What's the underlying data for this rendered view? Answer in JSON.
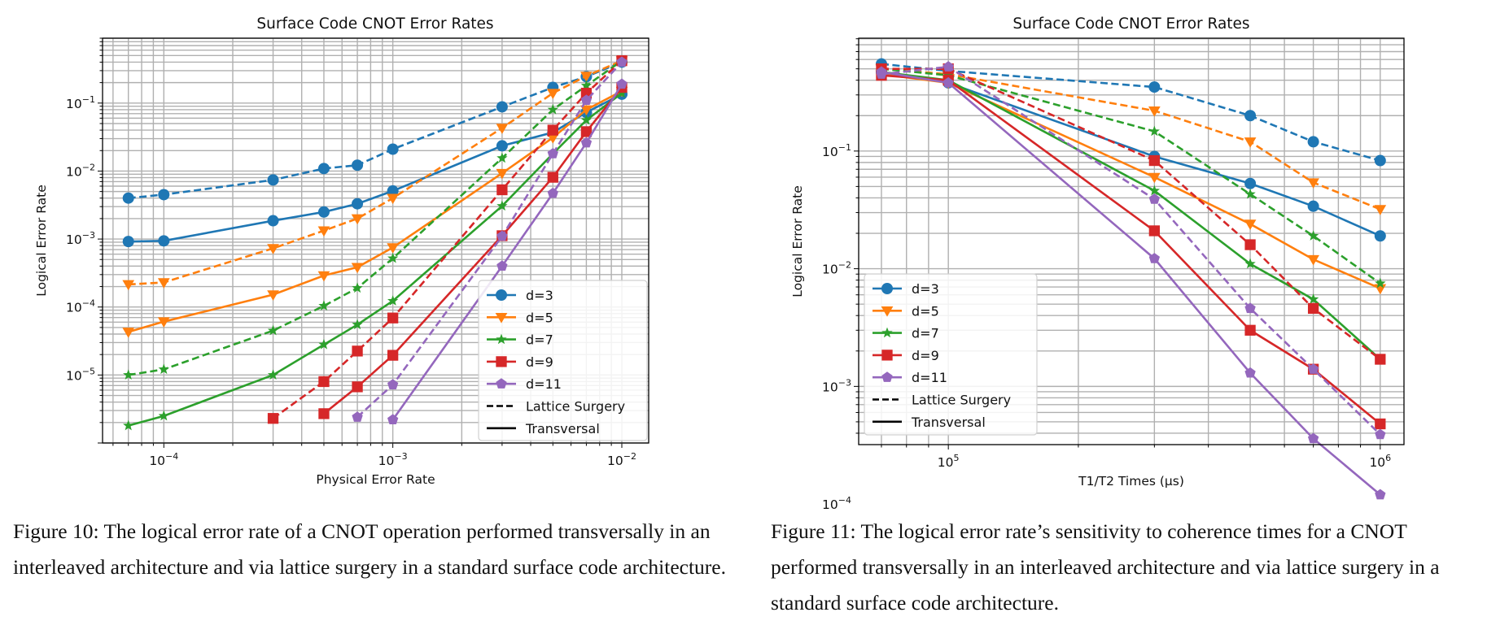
{
  "colors": {
    "d3": "#1f77b4",
    "d5": "#ff7f0e",
    "d7": "#2ca02c",
    "d9": "#d62728",
    "d11": "#9467bd",
    "grid": "#b0b0b0"
  },
  "chart_data": [
    {
      "type": "line",
      "title": "Surface Code CNOT Error Rates",
      "xlabel": "Physical Error Rate",
      "ylabel": "Logical Error Rate",
      "xscale": "log",
      "yscale": "log",
      "xlim": [
        5.4e-05,
        0.0131
      ],
      "ylim": [
        1e-06,
        0.9
      ],
      "grid": "both major and minor",
      "legend_position": "lower-right",
      "xticks": [
        {
          "value": 0.0001,
          "label": "10^−4"
        },
        {
          "value": 0.001,
          "label": "10^−3"
        },
        {
          "value": 0.01,
          "label": "10^−2"
        }
      ],
      "yticks": [
        {
          "value": 0.1,
          "label": "10^−1"
        },
        {
          "value": 0.01,
          "label": "10^−2"
        },
        {
          "value": 0.001,
          "label": "10^−3"
        },
        {
          "value": 0.0001,
          "label": "10^−4"
        },
        {
          "value": 1e-05,
          "label": "10^−5"
        }
      ],
      "x": [
        7e-05,
        0.0001,
        0.0003,
        0.0005,
        0.0007,
        0.001,
        0.003,
        0.005,
        0.007,
        0.01
      ],
      "series": [
        {
          "name": "d=3",
          "method": "Lattice Surgery",
          "style": "dashed",
          "color": "#1f77b4",
          "marker": "circle",
          "values": [
            0.004,
            0.0045,
            0.0074,
            0.0109,
            0.0122,
            0.021,
            0.088,
            0.17,
            0.245,
            0.4
          ]
        },
        {
          "name": "d=3",
          "method": "Transversal",
          "style": "solid",
          "color": "#1f77b4",
          "marker": "circle",
          "values": [
            0.00092,
            0.00094,
            0.00186,
            0.0025,
            0.0033,
            0.0051,
            0.0235,
            0.037,
            0.073,
            0.135
          ]
        },
        {
          "name": "d=5",
          "method": "Lattice Surgery",
          "style": "dashed",
          "color": "#ff7f0e",
          "marker": "triangle-down",
          "values": [
            0.000215,
            0.00023,
            0.00073,
            0.00133,
            0.002,
            0.004,
            0.043,
            0.14,
            0.25,
            0.42
          ]
        },
        {
          "name": "d=5",
          "method": "Transversal",
          "style": "solid",
          "color": "#ff7f0e",
          "marker": "triangle-down",
          "values": [
            4.3e-05,
            6.1e-05,
            0.000152,
            0.00029,
            0.000385,
            0.00075,
            0.0093,
            0.031,
            0.08,
            0.15
          ]
        },
        {
          "name": "d=7",
          "method": "Lattice Surgery",
          "style": "dashed",
          "color": "#2ca02c",
          "marker": "star",
          "values": [
            1e-05,
            1.21e-05,
            4.5e-05,
            0.000104,
            0.00019,
            0.00052,
            0.0155,
            0.08,
            0.18,
            0.42
          ]
        },
        {
          "name": "d=7",
          "method": "Transversal",
          "style": "solid",
          "color": "#2ca02c",
          "marker": "star",
          "values": [
            1.8e-06,
            2.5e-06,
            1e-05,
            2.8e-05,
            5.5e-05,
            0.000123,
            0.00306,
            0.018,
            0.056,
            0.14
          ]
        },
        {
          "name": "d=9",
          "method": "Lattice Surgery",
          "style": "dashed",
          "color": "#d62728",
          "marker": "square",
          "values": [
            null,
            null,
            2.3e-06,
            8e-06,
            2.25e-05,
            6.9e-05,
            0.0053,
            0.04,
            0.14,
            0.42
          ]
        },
        {
          "name": "d=9",
          "method": "Transversal",
          "style": "solid",
          "color": "#d62728",
          "marker": "square",
          "values": [
            null,
            null,
            null,
            2.7e-06,
            6.7e-06,
            1.95e-05,
            0.00112,
            0.0081,
            0.038,
            0.17
          ]
        },
        {
          "name": "d=11",
          "method": "Lattice Surgery",
          "style": "dashed",
          "color": "#9467bd",
          "marker": "pentagon",
          "values": [
            null,
            null,
            null,
            null,
            2.4e-06,
            7.2e-06,
            0.0011,
            0.018,
            0.11,
            0.4
          ]
        },
        {
          "name": "d=11",
          "method": "Transversal",
          "style": "solid",
          "color": "#9467bd",
          "marker": "pentagon",
          "values": [
            null,
            null,
            null,
            null,
            null,
            2.2e-06,
            0.0004,
            0.0047,
            0.026,
            0.19
          ]
        }
      ],
      "legend": [
        {
          "label": "d=3",
          "color": "#1f77b4",
          "marker": "circle",
          "style": "solid"
        },
        {
          "label": "d=5",
          "color": "#ff7f0e",
          "marker": "triangle-down",
          "style": "solid"
        },
        {
          "label": "d=7",
          "color": "#2ca02c",
          "marker": "star",
          "style": "solid"
        },
        {
          "label": "d=9",
          "color": "#d62728",
          "marker": "square",
          "style": "solid"
        },
        {
          "label": "d=11",
          "color": "#9467bd",
          "marker": "pentagon",
          "style": "solid"
        },
        {
          "label": "Lattice Surgery",
          "color": "#000000",
          "marker": "none",
          "style": "dashed"
        },
        {
          "label": "Transversal",
          "color": "#000000",
          "marker": "none",
          "style": "solid"
        }
      ]
    },
    {
      "type": "line",
      "title": "Surface Code CNOT Error Rates",
      "xlabel": "T1/T2 Times (μs)",
      "ylabel": "Logical Error Rate",
      "xscale": "log",
      "yscale": "log",
      "xlim": [
        62000,
        1135000
      ],
      "ylim": [
        0.00032,
        0.91
      ],
      "grid": "both major and minor",
      "legend_position": "lower-left",
      "xticks": [
        {
          "value": 100000,
          "label": "10^5"
        },
        {
          "value": 1000000,
          "label": "10^6"
        }
      ],
      "yticks": [
        {
          "value": 0.1,
          "label": "10^−1"
        },
        {
          "value": 0.01,
          "label": "10^−2"
        },
        {
          "value": 0.001,
          "label": "10^−3"
        },
        {
          "value": 0.0001,
          "label": "10^−4"
        }
      ],
      "x": [
        70000,
        100000,
        300000,
        500000,
        700000,
        1000000
      ],
      "series": [
        {
          "name": "d=3",
          "method": "Lattice Surgery",
          "style": "dashed",
          "color": "#1f77b4",
          "marker": "circle",
          "values": [
            0.55,
            0.48,
            0.35,
            0.2,
            0.12,
            0.083
          ]
        },
        {
          "name": "d=3",
          "method": "Transversal",
          "style": "solid",
          "color": "#1f77b4",
          "marker": "circle",
          "values": [
            0.47,
            0.38,
            0.09,
            0.053,
            0.034,
            0.019
          ]
        },
        {
          "name": "d=5",
          "method": "Lattice Surgery",
          "style": "dashed",
          "color": "#ff7f0e",
          "marker": "triangle-down",
          "values": [
            0.5,
            0.45,
            0.22,
            0.12,
            0.054,
            0.032
          ]
        },
        {
          "name": "d=5",
          "method": "Transversal",
          "style": "solid",
          "color": "#ff7f0e",
          "marker": "triangle-down",
          "values": [
            0.45,
            0.38,
            0.06,
            0.024,
            0.012,
            0.0068
          ]
        },
        {
          "name": "d=7",
          "method": "Lattice Surgery",
          "style": "dashed",
          "color": "#2ca02c",
          "marker": "star",
          "values": [
            0.5,
            0.44,
            0.147,
            0.043,
            0.019,
            0.0075
          ]
        },
        {
          "name": "d=7",
          "method": "Transversal",
          "style": "solid",
          "color": "#2ca02c",
          "marker": "star",
          "values": [
            0.47,
            0.4,
            0.046,
            0.011,
            0.0055,
            0.0017
          ]
        },
        {
          "name": "d=9",
          "method": "Lattice Surgery",
          "style": "dashed",
          "color": "#d62728",
          "marker": "square",
          "values": [
            0.5,
            0.5,
            0.083,
            0.016,
            0.0046,
            0.0017
          ]
        },
        {
          "name": "d=9",
          "method": "Transversal",
          "style": "solid",
          "color": "#d62728",
          "marker": "square",
          "values": [
            0.44,
            0.4,
            0.021,
            0.003,
            0.0014,
            0.00048
          ]
        },
        {
          "name": "d=11",
          "method": "Lattice Surgery",
          "style": "dashed",
          "color": "#9467bd",
          "marker": "pentagon",
          "values": [
            0.45,
            0.52,
            0.039,
            0.0046,
            0.0014,
            0.00039
          ]
        },
        {
          "name": "d=11",
          "method": "Transversal",
          "style": "solid",
          "color": "#9467bd",
          "marker": "pentagon",
          "values": [
            0.47,
            0.38,
            0.0122,
            0.0013,
            0.00036,
            0.00012
          ]
        }
      ],
      "legend": [
        {
          "label": "d=3",
          "color": "#1f77b4",
          "marker": "circle",
          "style": "solid"
        },
        {
          "label": "d=5",
          "color": "#ff7f0e",
          "marker": "triangle-down",
          "style": "solid"
        },
        {
          "label": "d=7",
          "color": "#2ca02c",
          "marker": "star",
          "style": "solid"
        },
        {
          "label": "d=9",
          "color": "#d62728",
          "marker": "square",
          "style": "solid"
        },
        {
          "label": "d=11",
          "color": "#9467bd",
          "marker": "pentagon",
          "style": "solid"
        },
        {
          "label": "Lattice Surgery",
          "color": "#000000",
          "marker": "none",
          "style": "dashed"
        },
        {
          "label": "Transversal",
          "color": "#000000",
          "marker": "none",
          "style": "solid"
        }
      ]
    }
  ],
  "captions": {
    "figure10": "Figure 10: The logical error rate of a CNOT operation performed transversally in an interleaved architecture and via lattice surgery in a standard surface code architecture.",
    "figure11": "Figure 11: The logical error rate’s sensitivity to coherence times for a CNOT performed transversally in an interleaved architecture and via lattice surgery in a standard surface code architecture."
  }
}
